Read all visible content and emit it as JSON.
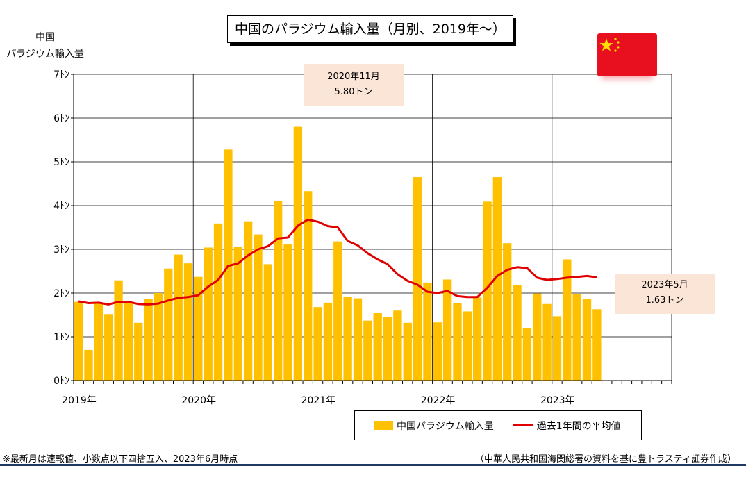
{
  "title": "中国のパラジウム輸入量（月別、2019年～）",
  "y_axis_title_line1": "中国",
  "y_axis_title_line2": "パラジウム輸入量",
  "footnote": "※最新月は速報値、小数点以下四捨五入、2023年6月時点",
  "source": "（中華人民共和国海関総署の資料を基に豊トラスティ証券作成）",
  "callouts": [
    {
      "line1": "2020年11月",
      "line2": "5.80トン"
    },
    {
      "line1": "2023年5月",
      "line2": "1.63トン"
    }
  ],
  "colors": {
    "bar": "#ffc000",
    "line": "#e10000",
    "callout_bg": "#fbe5d6",
    "flag": "#e8101f",
    "flag_star": "#ffde00"
  },
  "icons": {
    "flag": "china-flag-icon"
  },
  "chart_data": {
    "type": "bar",
    "y_unit": "トン",
    "ylim": [
      0,
      7
    ],
    "y_ticks": [
      0,
      1,
      2,
      3,
      4,
      5,
      6,
      7
    ],
    "y_tick_labels": [
      "0ﾄﾝ",
      "1ﾄﾝ",
      "2ﾄﾝ",
      "3ﾄﾝ",
      "4ﾄﾝ",
      "5ﾄﾝ",
      "6ﾄﾝ",
      "7ﾄﾝ"
    ],
    "x_range": [
      "2019-01",
      "2023-12"
    ],
    "x_tick_labels": [
      "2019年",
      "2020年",
      "2021年",
      "2022年",
      "2023年"
    ],
    "grid": true,
    "legend_position": "bottom-right",
    "series": [
      {
        "name": "中国パラジウム輸入量",
        "type": "bar",
        "x": [
          "2019-01",
          "2019-02",
          "2019-03",
          "2019-04",
          "2019-05",
          "2019-06",
          "2019-07",
          "2019-08",
          "2019-09",
          "2019-10",
          "2019-11",
          "2019-12",
          "2020-01",
          "2020-02",
          "2020-03",
          "2020-04",
          "2020-05",
          "2020-06",
          "2020-07",
          "2020-08",
          "2020-09",
          "2020-10",
          "2020-11",
          "2020-12",
          "2021-01",
          "2021-02",
          "2021-03",
          "2021-04",
          "2021-05",
          "2021-06",
          "2021-07",
          "2021-08",
          "2021-09",
          "2021-10",
          "2021-11",
          "2021-12",
          "2022-01",
          "2022-02",
          "2022-03",
          "2022-04",
          "2022-05",
          "2022-06",
          "2022-07",
          "2022-08",
          "2022-09",
          "2022-10",
          "2022-11",
          "2022-12",
          "2023-01",
          "2023-02",
          "2023-03",
          "2023-04",
          "2023-05"
        ],
        "values": [
          1.8,
          0.7,
          1.78,
          1.52,
          2.29,
          1.8,
          1.32,
          1.87,
          2.0,
          2.56,
          2.88,
          2.68,
          2.37,
          3.04,
          3.59,
          5.28,
          3.05,
          3.64,
          3.34,
          2.66,
          4.1,
          3.11,
          5.8,
          4.33,
          1.68,
          1.78,
          3.18,
          1.92,
          1.88,
          1.37,
          1.55,
          1.45,
          1.6,
          1.32,
          4.65,
          2.24,
          1.33,
          2.31,
          1.77,
          1.58,
          1.9,
          4.09,
          4.65,
          3.14,
          2.18,
          1.2,
          1.99,
          1.75,
          1.47,
          2.77,
          1.97,
          1.87,
          1.63
        ]
      },
      {
        "name": "過去1年間の平均値",
        "type": "line",
        "x": [
          "2019-01",
          "2019-02",
          "2019-03",
          "2019-04",
          "2019-05",
          "2019-06",
          "2019-07",
          "2019-08",
          "2019-09",
          "2019-10",
          "2019-11",
          "2019-12",
          "2020-01",
          "2020-02",
          "2020-03",
          "2020-04",
          "2020-05",
          "2020-06",
          "2020-07",
          "2020-08",
          "2020-09",
          "2020-10",
          "2020-11",
          "2020-12",
          "2021-01",
          "2021-02",
          "2021-03",
          "2021-04",
          "2021-05",
          "2021-06",
          "2021-07",
          "2021-08",
          "2021-09",
          "2021-10",
          "2021-11",
          "2021-12",
          "2022-01",
          "2022-02",
          "2022-03",
          "2022-04",
          "2022-05",
          "2022-06",
          "2022-07",
          "2022-08",
          "2022-09",
          "2022-10",
          "2022-11",
          "2022-12",
          "2023-01",
          "2023-02",
          "2023-03",
          "2023-04",
          "2023-05"
        ],
        "values": [
          1.81,
          1.77,
          1.78,
          1.74,
          1.8,
          1.8,
          1.75,
          1.74,
          1.76,
          1.83,
          1.89,
          1.91,
          1.95,
          2.15,
          2.3,
          2.62,
          2.68,
          2.86,
          3.0,
          3.07,
          3.25,
          3.27,
          3.54,
          3.68,
          3.63,
          3.53,
          3.5,
          3.19,
          3.09,
          2.91,
          2.77,
          2.66,
          2.43,
          2.28,
          2.19,
          2.03,
          2.0,
          2.05,
          1.93,
          1.91,
          1.91,
          2.12,
          2.39,
          2.53,
          2.59,
          2.57,
          2.35,
          2.3,
          2.32,
          2.35,
          2.37,
          2.39,
          2.36
        ]
      }
    ]
  }
}
